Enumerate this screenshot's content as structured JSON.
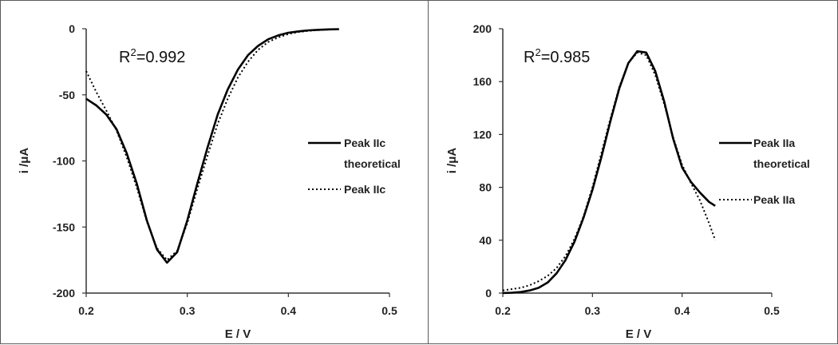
{
  "chart_data": [
    {
      "type": "line",
      "xlabel": "E / V",
      "ylabel": "i /μA",
      "xlim": [
        0.2,
        0.5
      ],
      "ylim": [
        -200,
        0
      ],
      "x_ticks": [
        "0.2",
        "0.3",
        "0.4",
        "0.5"
      ],
      "y_ticks": [
        "0",
        "-50",
        "-100",
        "-150",
        "-200"
      ],
      "annotation": {
        "prefix": "R",
        "sup": "2",
        "value": "=0.992"
      },
      "legend_position": "right",
      "series": [
        {
          "name": "Peak IIc theoretical",
          "name_lines": [
            "Peak IIc",
            "theoretical"
          ],
          "style": "solid",
          "color": "#000000",
          "x": [
            0.2,
            0.21,
            0.22,
            0.23,
            0.24,
            0.25,
            0.26,
            0.27,
            0.28,
            0.29,
            0.3,
            0.31,
            0.32,
            0.33,
            0.34,
            0.35,
            0.36,
            0.37,
            0.38,
            0.39,
            0.4,
            0.41,
            0.42,
            0.43,
            0.44,
            0.45
          ],
          "y": [
            -53,
            -58,
            -65,
            -76,
            -94,
            -117,
            -145,
            -167,
            -177,
            -169,
            -145,
            -117,
            -90,
            -65,
            -46,
            -31,
            -20,
            -13,
            -8,
            -5,
            -3,
            -2,
            -1.2,
            -0.8,
            -0.5,
            -0.3
          ]
        },
        {
          "name": "Peak IIc",
          "name_lines": [
            "Peak IIc"
          ],
          "style": "dotted",
          "color": "#000000",
          "x": [
            0.2,
            0.21,
            0.22,
            0.23,
            0.24,
            0.25,
            0.26,
            0.27,
            0.28,
            0.29,
            0.3,
            0.31,
            0.32,
            0.33,
            0.34,
            0.35,
            0.36,
            0.37,
            0.38,
            0.39,
            0.4,
            0.41,
            0.42,
            0.43,
            0.44,
            0.45
          ],
          "y": [
            -32,
            -48,
            -62,
            -77,
            -97,
            -120,
            -146,
            -166,
            -175,
            -168,
            -147,
            -121,
            -96,
            -72,
            -53,
            -37,
            -25,
            -16,
            -10,
            -6.5,
            -4,
            -2.5,
            -1.6,
            -1,
            -0.6,
            -0.4
          ]
        }
      ]
    },
    {
      "type": "line",
      "xlabel": "E / V",
      "ylabel": "i /μA",
      "xlim": [
        0.2,
        0.5
      ],
      "ylim": [
        0,
        200
      ],
      "x_ticks": [
        "0.2",
        "0.3",
        "0.4",
        "0.5"
      ],
      "y_ticks": [
        "200",
        "160",
        "120",
        "80",
        "40",
        "0"
      ],
      "annotation": {
        "prefix": "R",
        "sup": "2",
        "value": "=0.985"
      },
      "legend_position": "right",
      "series": [
        {
          "name": "Peak IIa theoretical",
          "name_lines": [
            "Peak IIa",
            "theoretical"
          ],
          "style": "solid",
          "color": "#000000",
          "x": [
            0.2,
            0.21,
            0.22,
            0.23,
            0.24,
            0.25,
            0.26,
            0.27,
            0.28,
            0.29,
            0.3,
            0.31,
            0.32,
            0.33,
            0.34,
            0.35,
            0.36,
            0.37,
            0.38,
            0.39,
            0.4,
            0.41,
            0.42,
            0.43,
            0.437
          ],
          "y": [
            0,
            0.3,
            0.8,
            2,
            4,
            8,
            15,
            25,
            39,
            57,
            78,
            103,
            130,
            155,
            174,
            183,
            182,
            168,
            145,
            117,
            95,
            84,
            76,
            69,
            66
          ]
        },
        {
          "name": "Peak IIa",
          "name_lines": [
            "Peak IIa"
          ],
          "style": "dotted",
          "color": "#000000",
          "x": [
            0.2,
            0.21,
            0.22,
            0.23,
            0.24,
            0.25,
            0.26,
            0.27,
            0.28,
            0.29,
            0.3,
            0.31,
            0.32,
            0.33,
            0.34,
            0.35,
            0.36,
            0.37,
            0.38,
            0.39,
            0.4,
            0.41,
            0.42,
            0.43,
            0.437
          ],
          "y": [
            2,
            3,
            4,
            6,
            9,
            13,
            19,
            28,
            41,
            58,
            80,
            106,
            132,
            156,
            174,
            182,
            180,
            165,
            143,
            118,
            97,
            83,
            70,
            53,
            40
          ]
        }
      ]
    }
  ]
}
